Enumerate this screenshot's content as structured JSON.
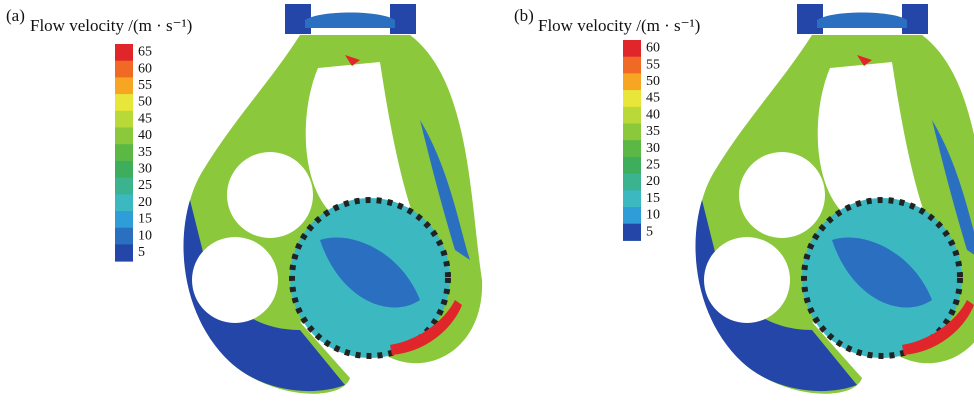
{
  "panels": [
    {
      "label": "(a)",
      "legend": {
        "title": "Flow velocity /(m · s⁻¹)",
        "ticks": [
          65,
          60,
          55,
          50,
          45,
          40,
          35,
          30,
          25,
          20,
          15,
          10,
          5
        ],
        "colors": [
          "#e0262a",
          "#f06a25",
          "#f6a623",
          "#e9e63a",
          "#b8d938",
          "#8cc83c",
          "#5cb845",
          "#3fae5c",
          "#3bb38f",
          "#3bb8c0",
          "#2f9ed8",
          "#2b6fc0",
          "#2346a8"
        ]
      }
    },
    {
      "label": "(b)",
      "legend": {
        "title": "Flow velocity /(m · s⁻¹)",
        "ticks": [
          60,
          55,
          50,
          45,
          40,
          35,
          30,
          25,
          20,
          15,
          10,
          5
        ],
        "colors": [
          "#e0262a",
          "#f06a25",
          "#f6a623",
          "#e9e63a",
          "#b8d938",
          "#8cc83c",
          "#5cb845",
          "#3fae5c",
          "#3bb38f",
          "#3bb8c0",
          "#2f9ed8",
          "#2346a8"
        ]
      }
    }
  ]
}
